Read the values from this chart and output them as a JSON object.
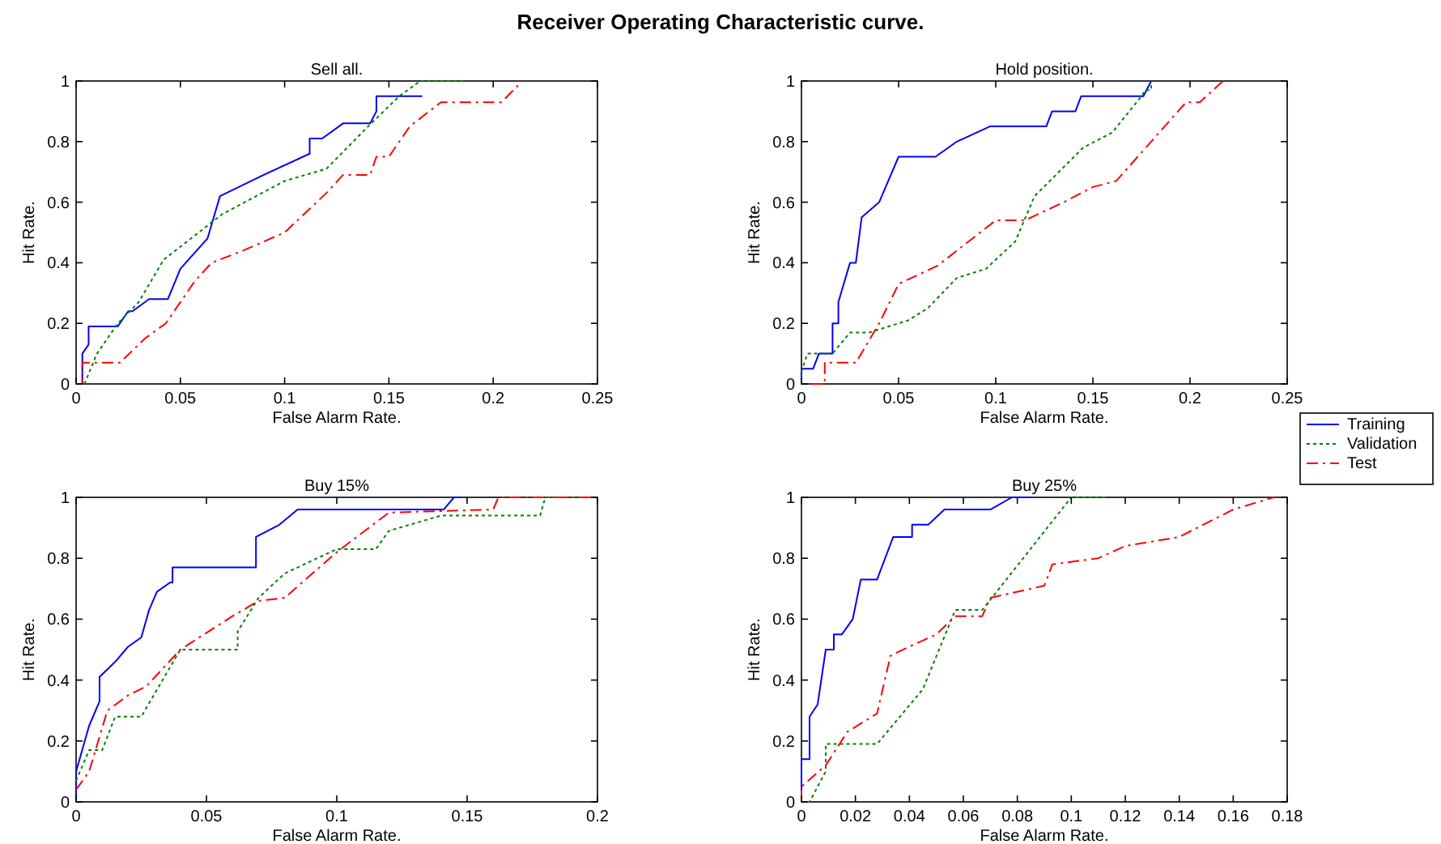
{
  "chart_data": [
    {
      "type": "line",
      "title": "Sell all.",
      "annotations": [
        "Receiver Operating Characteristic curve."
      ],
      "xlabel": "False Alarm Rate.",
      "ylabel": "Hit Rate.",
      "xlim": [
        0,
        0.25
      ],
      "xticks": [
        0,
        0.05,
        0.1,
        0.15,
        0.2,
        0.25
      ],
      "ylim": [
        0,
        1
      ],
      "yticks": [
        0,
        0.2,
        0.4,
        0.6,
        0.8,
        1
      ],
      "legend": false,
      "series": [
        {
          "color": "#0000ff",
          "line_style": "solid",
          "x": [
            0.003,
            0.003,
            0.006,
            0.006,
            0.02,
            0.025,
            0.027,
            0.035,
            0.044,
            0.05,
            0.063,
            0.069,
            0.09,
            0.112,
            0.112,
            0.118,
            0.128,
            0.141,
            0.144,
            0.144,
            0.166
          ],
          "values": [
            0,
            0.1,
            0.13,
            0.19,
            0.19,
            0.24,
            0.24,
            0.28,
            0.28,
            0.38,
            0.48,
            0.62,
            0.69,
            0.76,
            0.81,
            0.81,
            0.86,
            0.86,
            0.9,
            0.95,
            0.95
          ]
        },
        {
          "color": "#008000",
          "line_style": "dotted",
          "x": [
            0.004,
            0.01,
            0.02,
            0.03,
            0.042,
            0.07,
            0.1,
            0.12,
            0.14,
            0.155,
            0.165,
            0.186
          ],
          "values": [
            0,
            0.1,
            0.2,
            0.27,
            0.41,
            0.56,
            0.67,
            0.71,
            0.85,
            0.95,
            1,
            1
          ]
        },
        {
          "color": "#ff0000",
          "line_style": "dashed",
          "x": [
            0,
            0.003,
            0.003,
            0.021,
            0.033,
            0.043,
            0.057,
            0.065,
            0.08,
            0.1,
            0.12,
            0.128,
            0.141,
            0.144,
            0.15,
            0.16,
            0.175,
            0.204,
            0.214
          ],
          "values": [
            0,
            0,
            0.07,
            0.07,
            0.15,
            0.2,
            0.34,
            0.4,
            0.44,
            0.5,
            0.63,
            0.69,
            0.69,
            0.75,
            0.75,
            0.85,
            0.93,
            0.93,
            1
          ]
        }
      ]
    },
    {
      "type": "line",
      "title": "Hold position.",
      "xlabel": "False Alarm Rate.",
      "ylabel": "Hit Rate.",
      "xlim": [
        0,
        0.25
      ],
      "xticks": [
        0,
        0.05,
        0.1,
        0.15,
        0.2,
        0.25
      ],
      "ylim": [
        0,
        1
      ],
      "yticks": [
        0,
        0.2,
        0.4,
        0.6,
        0.8,
        1
      ],
      "legend": "right",
      "series": [
        {
          "name": "Training",
          "color": "#0000ff",
          "line_style": "solid",
          "x": [
            0,
            0,
            0.006,
            0.009,
            0.016,
            0.016,
            0.019,
            0.019,
            0.025,
            0.028,
            0.031,
            0.04,
            0.05,
            0.069,
            0.08,
            0.097,
            0.126,
            0.129,
            0.141,
            0.144,
            0.176,
            0.18
          ],
          "values": [
            0,
            0.05,
            0.05,
            0.1,
            0.1,
            0.2,
            0.2,
            0.27,
            0.4,
            0.4,
            0.55,
            0.6,
            0.75,
            0.75,
            0.8,
            0.85,
            0.85,
            0.9,
            0.9,
            0.95,
            0.95,
            1
          ]
        },
        {
          "name": "Validation",
          "color": "#008000",
          "line_style": "dotted",
          "x": [
            0,
            0.003,
            0.016,
            0.025,
            0.035,
            0.05,
            0.055,
            0.065,
            0.08,
            0.095,
            0.11,
            0.12,
            0.145,
            0.16,
            0.175,
            0.177,
            0.18,
            0.18
          ],
          "values": [
            0.04,
            0.1,
            0.1,
            0.17,
            0.17,
            0.2,
            0.21,
            0.25,
            0.35,
            0.38,
            0.47,
            0.62,
            0.78,
            0.83,
            0.95,
            0.97,
            0.97,
            1
          ]
        },
        {
          "name": "Test",
          "color": "#ff0000",
          "line_style": "dashed",
          "x": [
            0.005,
            0.012,
            0.012,
            0.028,
            0.04,
            0.05,
            0.07,
            0.1,
            0.115,
            0.135,
            0.15,
            0.162,
            0.18,
            0.198,
            0.205,
            0.217
          ],
          "values": [
            0,
            0,
            0.07,
            0.07,
            0.2,
            0.33,
            0.39,
            0.54,
            0.54,
            0.6,
            0.65,
            0.67,
            0.8,
            0.93,
            0.93,
            1
          ]
        }
      ]
    },
    {
      "type": "line",
      "title": "Buy 15%",
      "xlabel": "False Alarm Rate.",
      "ylabel": "Hit Rate.",
      "xlim": [
        0,
        0.2
      ],
      "xticks": [
        0,
        0.05,
        0.1,
        0.15,
        0.2
      ],
      "ylim": [
        0,
        1
      ],
      "yticks": [
        0,
        0.2,
        0.4,
        0.6,
        0.8,
        1
      ],
      "legend": false,
      "series": [
        {
          "color": "#0000ff",
          "line_style": "solid",
          "x": [
            0,
            0,
            0.005,
            0.009,
            0.009,
            0.015,
            0.02,
            0.025,
            0.028,
            0.031,
            0.036,
            0.037,
            0.037,
            0.069,
            0.069,
            0.078,
            0.085,
            0.141,
            0.145,
            0.148
          ],
          "values": [
            0,
            0.1,
            0.25,
            0.33,
            0.41,
            0.46,
            0.51,
            0.54,
            0.63,
            0.69,
            0.72,
            0.72,
            0.77,
            0.77,
            0.87,
            0.91,
            0.96,
            0.96,
            1,
            1
          ]
        },
        {
          "color": "#008000",
          "line_style": "dotted",
          "x": [
            0,
            0.005,
            0.01,
            0.015,
            0.025,
            0.04,
            0.062,
            0.062,
            0.07,
            0.08,
            0.1,
            0.115,
            0.12,
            0.14,
            0.178,
            0.18,
            0.2
          ],
          "values": [
            0.07,
            0.17,
            0.17,
            0.28,
            0.28,
            0.5,
            0.5,
            0.56,
            0.67,
            0.75,
            0.83,
            0.83,
            0.89,
            0.94,
            0.94,
            1,
            1
          ]
        },
        {
          "color": "#ff0000",
          "line_style": "dashed",
          "x": [
            0,
            0.005,
            0.012,
            0.02,
            0.027,
            0.04,
            0.06,
            0.07,
            0.08,
            0.1,
            0.12,
            0.16,
            0.162,
            0.2
          ],
          "values": [
            0.04,
            0.1,
            0.3,
            0.35,
            0.38,
            0.5,
            0.61,
            0.66,
            0.67,
            0.82,
            0.95,
            0.96,
            1,
            1
          ]
        }
      ]
    },
    {
      "type": "line",
      "title": "Buy 25%",
      "xlabel": "False Alarm Rate.",
      "ylabel": "Hit Rate.",
      "xlim": [
        0,
        0.18
      ],
      "xticks": [
        0,
        0.02,
        0.04,
        0.06,
        0.08,
        0.1,
        0.12,
        0.14,
        0.16,
        0.18
      ],
      "ylim": [
        0,
        1
      ],
      "yticks": [
        0,
        0.2,
        0.4,
        0.6,
        0.8,
        1
      ],
      "legend": false,
      "series": [
        {
          "color": "#0000ff",
          "line_style": "solid",
          "x": [
            0,
            0,
            0.003,
            0.003,
            0.006,
            0.009,
            0.012,
            0.012,
            0.015,
            0.019,
            0.022,
            0.028,
            0.034,
            0.041,
            0.041,
            0.047,
            0.053,
            0.07,
            0.078,
            0.085
          ],
          "values": [
            0,
            0.14,
            0.14,
            0.28,
            0.32,
            0.5,
            0.5,
            0.55,
            0.55,
            0.6,
            0.73,
            0.73,
            0.87,
            0.87,
            0.91,
            0.91,
            0.96,
            0.96,
            1,
            1
          ]
        },
        {
          "color": "#008000",
          "line_style": "dotted",
          "x": [
            0,
            0.003,
            0.009,
            0.009,
            0.028,
            0.045,
            0.057,
            0.067,
            0.1,
            0.113
          ],
          "values": [
            0,
            0,
            0.1,
            0.19,
            0.19,
            0.37,
            0.63,
            0.63,
            1,
            1
          ]
        },
        {
          "color": "#ff0000",
          "line_style": "dashed",
          "x": [
            0,
            0,
            0.009,
            0.017,
            0.028,
            0.033,
            0.04,
            0.05,
            0.057,
            0.067,
            0.07,
            0.09,
            0.093,
            0.11,
            0.12,
            0.14,
            0.16,
            0.175
          ],
          "values": [
            0,
            0.05,
            0.12,
            0.23,
            0.29,
            0.48,
            0.51,
            0.55,
            0.61,
            0.61,
            0.67,
            0.71,
            0.78,
            0.8,
            0.84,
            0.87,
            0.96,
            1
          ]
        }
      ]
    }
  ]
}
